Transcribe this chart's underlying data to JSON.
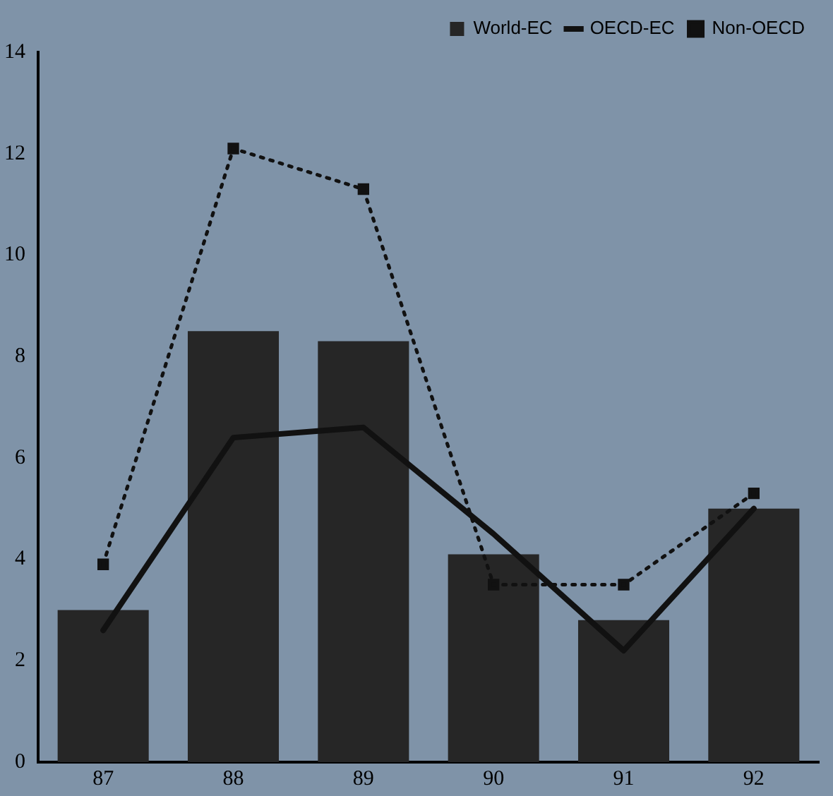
{
  "chart_data": {
    "type": "bar",
    "categories": [
      "87",
      "88",
      "89",
      "90",
      "91",
      "92"
    ],
    "ylim": [
      0,
      14
    ],
    "yticks": [
      0,
      2,
      4,
      6,
      8,
      10,
      12,
      14
    ],
    "grid": false,
    "legend": "top right",
    "series": [
      {
        "name": "World-EC",
        "color": "#262626",
        "values": [
          3.0,
          8.5,
          8.3,
          4.1,
          2.8,
          5.0
        ]
      },
      {
        "name": "OECD-EC",
        "type": "line",
        "color": "#111111",
        "line_style": "solid",
        "marker": "none",
        "values": [
          2.6,
          6.4,
          6.6,
          4.5,
          2.2,
          5.0
        ]
      },
      {
        "name": "Non-OECD",
        "type": "line",
        "color": "#111111",
        "line_style": "dotted",
        "marker": "square",
        "values": [
          3.9,
          12.1,
          11.3,
          3.5,
          3.5,
          5.3
        ]
      }
    ]
  }
}
